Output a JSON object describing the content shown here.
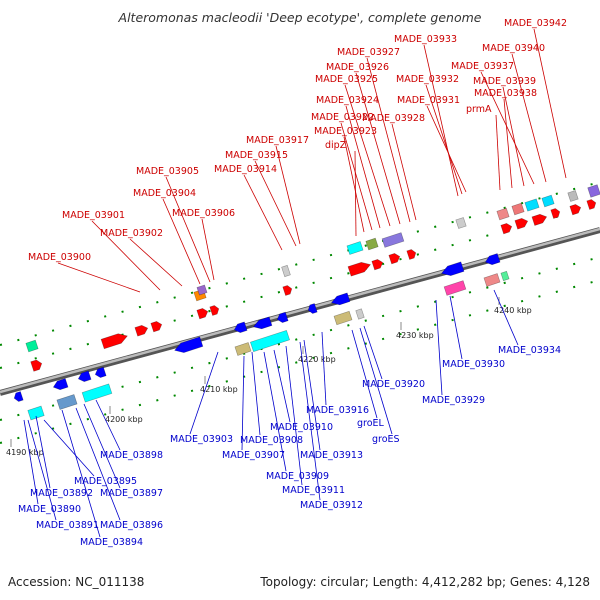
{
  "title": "Alteromonas macleodii 'Deep ecotype', complete genome",
  "footer": {
    "accession": "Accession: NC_011138",
    "summary": "Topology: circular; Length: 4,412,282 bp; Genes: 4,128"
  },
  "colors": {
    "forward_label": "#cc0000",
    "reverse_label": "#0000cc",
    "backbone": "#888888",
    "forward_arrow": "#ff0000",
    "reverse_arrow": "#0000ff",
    "tick": "#008800"
  },
  "tick_labels": [
    "4190 kbp",
    "4200 kbp",
    "4210 kbp",
    "4220 kbp",
    "4230 kbp",
    "4240 kbp"
  ],
  "forward_labels": [
    "MADE_03900",
    "MADE_03901",
    "MADE_03902",
    "MADE_03904",
    "MADE_03905",
    "MADE_03906",
    "MADE_03914",
    "MADE_03915",
    "MADE_03917",
    "dipZ",
    "MADE_03923",
    "MADE_03922",
    "MADE_03924",
    "MADE_03925",
    "MADE_03926",
    "MADE_03927",
    "MADE_03928",
    "MADE_03933",
    "MADE_03932",
    "MADE_03931",
    "prmA",
    "MADE_03938",
    "MADE_03939",
    "MADE_03937",
    "MADE_03940",
    "MADE_03942"
  ],
  "reverse_labels": [
    "MADE_03890",
    "MADE_03891",
    "MADE_03892",
    "MADE_03894",
    "MADE_03895",
    "MADE_03896",
    "MADE_03897",
    "MADE_03898",
    "MADE_03903",
    "MADE_03907",
    "MADE_03908",
    "MADE_03909",
    "MADE_03910",
    "MADE_03911",
    "MADE_03912",
    "MADE_03913",
    "MADE_03916",
    "groEL",
    "groES",
    "MADE_03920",
    "MADE_03929",
    "MADE_03930",
    "MADE_03934"
  ]
}
